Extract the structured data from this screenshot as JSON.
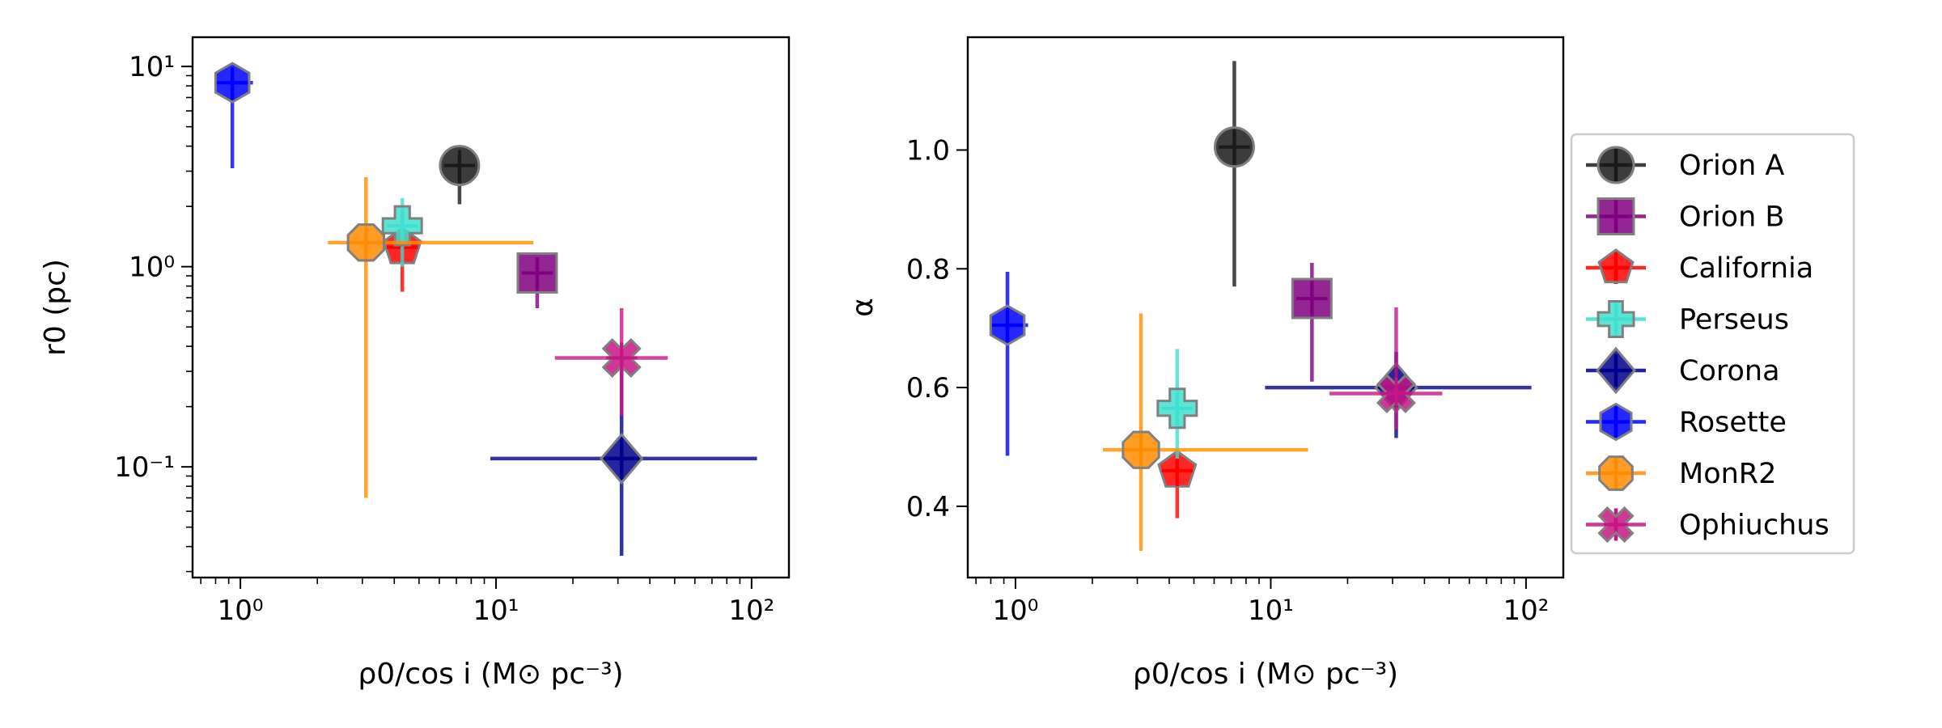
{
  "objects": [
    "Orion A",
    "Orion B",
    "California",
    "Perseus",
    "Corona",
    "Rosette",
    "MonR2",
    "Ophiuchus"
  ],
  "colors": {
    "Orion A": "#1a1a1a",
    "Orion B": "#800080",
    "California": "#ff0000",
    "Perseus": "#40e0d0",
    "Corona": "#00008b",
    "Rosette": "#0000ff",
    "MonR2": "#ff8c00",
    "Ophiuchus": "#c71585"
  },
  "markers": {
    "Orion A": "circle",
    "Orion B": "square",
    "California": "pentagon",
    "Perseus": "plus",
    "Corona": "diamond",
    "Rosette": "hexagon",
    "MonR2": "octagon",
    "Ophiuchus": "x"
  },
  "chart_data": [
    {
      "type": "scatter",
      "title": "",
      "xlabel": "ρ0/cos i (M⊙ pc⁻³)",
      "ylabel": "r0 (pc)",
      "xscale": "log",
      "yscale": "log",
      "xlim": [
        0.65,
        140
      ],
      "ylim": [
        0.028,
        14
      ],
      "xticks": [
        {
          "value": 1,
          "label": "10⁰"
        },
        {
          "value": 10,
          "label": "10¹"
        },
        {
          "value": 100,
          "label": "10²"
        }
      ],
      "yticks": [
        {
          "value": 0.1,
          "label": "10⁻¹"
        },
        {
          "value": 1,
          "label": "10⁰"
        },
        {
          "value": 10,
          "label": "10¹"
        }
      ],
      "series": [
        {
          "name": "Orion A",
          "x": 7.2,
          "y": 3.2,
          "xerr": [
            7.0,
            7.4
          ],
          "yerr": [
            2.05,
            3.6
          ]
        },
        {
          "name": "Orion B",
          "x": 14.5,
          "y": 0.93,
          "xerr": [
            14.3,
            14.7
          ],
          "yerr": [
            0.62,
            1.1
          ]
        },
        {
          "name": "California",
          "x": 4.3,
          "y": 1.25,
          "xerr": [
            4.15,
            4.45
          ],
          "yerr": [
            0.75,
            1.9
          ]
        },
        {
          "name": "Perseus",
          "x": 4.3,
          "y": 1.6,
          "xerr": [
            4.0,
            4.7
          ],
          "yerr": [
            1.0,
            2.2
          ]
        },
        {
          "name": "Corona",
          "x": 31,
          "y": 0.11,
          "xerr": [
            9.5,
            105
          ],
          "yerr": [
            0.036,
            0.32
          ]
        },
        {
          "name": "Rosette",
          "x": 0.93,
          "y": 8.3,
          "xerr": [
            0.9,
            1.12
          ],
          "yerr": [
            3.1,
            9.2
          ]
        },
        {
          "name": "MonR2",
          "x": 3.1,
          "y": 1.32,
          "xerr": [
            2.2,
            14
          ],
          "yerr": [
            0.07,
            2.8
          ]
        },
        {
          "name": "Ophiuchus",
          "x": 31,
          "y": 0.35,
          "xerr": [
            17,
            47
          ],
          "yerr": [
            0.18,
            0.62
          ]
        }
      ]
    },
    {
      "type": "scatter",
      "title": "",
      "xlabel": "ρ0/cos i (M⊙ pc⁻³)",
      "ylabel": "α",
      "xscale": "log",
      "yscale": "linear",
      "xlim": [
        0.65,
        140
      ],
      "ylim": [
        0.28,
        1.19
      ],
      "xticks": [
        {
          "value": 1,
          "label": "10⁰"
        },
        {
          "value": 10,
          "label": "10¹"
        },
        {
          "value": 100,
          "label": "10²"
        }
      ],
      "yticks": [
        {
          "value": 0.4,
          "label": "0.4"
        },
        {
          "value": 0.6,
          "label": "0.6"
        },
        {
          "value": 0.8,
          "label": "0.8"
        },
        {
          "value": 1.0,
          "label": "1.0"
        }
      ],
      "series": [
        {
          "name": "Orion A",
          "x": 7.2,
          "y": 1.005,
          "xerr": [
            7.0,
            7.4
          ],
          "yerr": [
            0.77,
            1.15
          ]
        },
        {
          "name": "Orion B",
          "x": 14.5,
          "y": 0.75,
          "xerr": [
            14.3,
            14.7
          ],
          "yerr": [
            0.61,
            0.81
          ]
        },
        {
          "name": "California",
          "x": 4.3,
          "y": 0.46,
          "xerr": [
            4.1,
            4.5
          ],
          "yerr": [
            0.38,
            0.49
          ]
        },
        {
          "name": "Perseus",
          "x": 4.3,
          "y": 0.565,
          "xerr": [
            4.0,
            4.7
          ],
          "yerr": [
            0.48,
            0.665
          ]
        },
        {
          "name": "Corona",
          "x": 31,
          "y": 0.6,
          "xerr": [
            9.5,
            105
          ],
          "yerr": [
            0.515,
            0.66
          ]
        },
        {
          "name": "Rosette",
          "x": 0.93,
          "y": 0.705,
          "xerr": [
            0.9,
            1.12
          ],
          "yerr": [
            0.485,
            0.795
          ]
        },
        {
          "name": "MonR2",
          "x": 3.1,
          "y": 0.495,
          "xerr": [
            2.2,
            14
          ],
          "yerr": [
            0.325,
            0.725
          ]
        },
        {
          "name": "Ophiuchus",
          "x": 31,
          "y": 0.59,
          "xerr": [
            17,
            47
          ],
          "yerr": [
            0.53,
            0.735
          ]
        }
      ]
    }
  ]
}
